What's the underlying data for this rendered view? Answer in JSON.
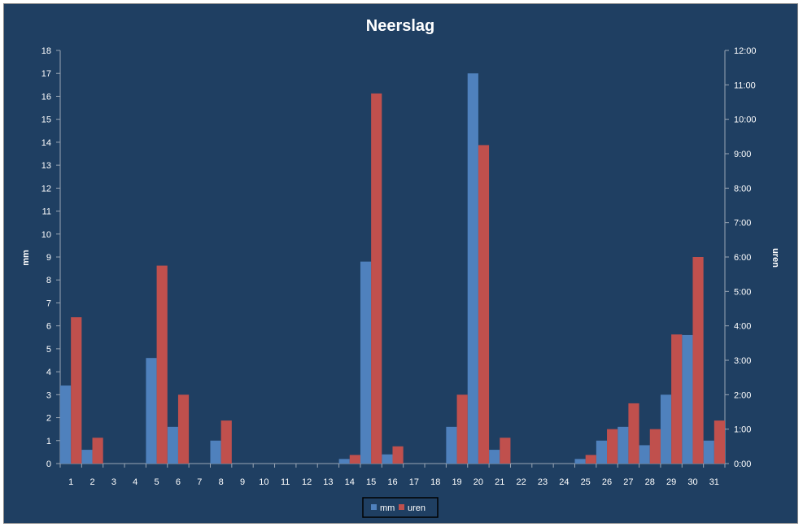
{
  "chart_data": {
    "type": "bar",
    "title": "Neerslag",
    "xlabel": "",
    "ylabel": "mm",
    "y2label": "uren",
    "ylim": [
      0,
      18
    ],
    "y2lim_hours": [
      0,
      12
    ],
    "grid": false,
    "legend_position": "bottom",
    "categories": [
      "1",
      "2",
      "3",
      "4",
      "5",
      "6",
      "7",
      "8",
      "9",
      "10",
      "11",
      "12",
      "13",
      "14",
      "15",
      "16",
      "17",
      "18",
      "19",
      "20",
      "21",
      "22",
      "23",
      "24",
      "25",
      "26",
      "27",
      "28",
      "29",
      "30",
      "31"
    ],
    "yticks": [
      "0",
      "1",
      "2",
      "3",
      "4",
      "5",
      "6",
      "7",
      "8",
      "9",
      "10",
      "11",
      "12",
      "13",
      "14",
      "15",
      "16",
      "17",
      "18"
    ],
    "y2ticks": [
      "0:00",
      "1:00",
      "2:00",
      "3:00",
      "4:00",
      "5:00",
      "6:00",
      "7:00",
      "8:00",
      "9:00",
      "10:00",
      "11:00",
      "12:00"
    ],
    "series": [
      {
        "name": "mm",
        "color": "#4f81bd",
        "axis": "left",
        "values": [
          3.4,
          0.6,
          0,
          0,
          4.6,
          1.6,
          0,
          1.0,
          0,
          0,
          0,
          0,
          0,
          0.2,
          8.8,
          0.4,
          0,
          0,
          1.6,
          17.0,
          0.6,
          0,
          0,
          0,
          0.2,
          1.0,
          1.6,
          0.8,
          3.0,
          5.6,
          1.0
        ]
      },
      {
        "name": "uren",
        "color": "#c0504d",
        "axis": "right",
        "unit": "hours",
        "values": [
          4.25,
          0.75,
          0,
          0,
          5.75,
          2.0,
          0,
          1.25,
          0,
          0,
          0,
          0,
          0,
          0.25,
          10.75,
          0.5,
          0,
          0,
          2.0,
          9.25,
          0.75,
          0,
          0,
          0,
          0.25,
          1.0,
          1.75,
          1.0,
          3.75,
          6.0,
          1.25
        ]
      }
    ]
  }
}
